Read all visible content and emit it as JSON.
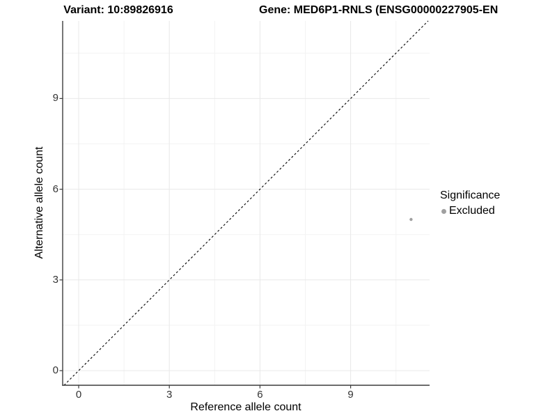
{
  "header": {
    "variant_title": "Variant: 10:89826916",
    "gene_title": "Gene: MED6P1-RNLS (ENSG00000227905-EN"
  },
  "chart_data": {
    "type": "scatter",
    "xlabel": "Reference allele count",
    "ylabel": "Alternative allele count",
    "x_ticks": [
      0,
      3,
      6,
      9
    ],
    "y_ticks": [
      0,
      3,
      6,
      9
    ],
    "x_minor_gridlines": [
      1.5,
      4.5,
      7.5,
      10.5
    ],
    "y_minor_gridlines": [
      1.5,
      4.5,
      7.5,
      10.5
    ],
    "xlim": [
      -0.55,
      11.6
    ],
    "ylim": [
      -0.55,
      11.6
    ],
    "grid": {
      "major": true,
      "minor": true
    },
    "reference_line": {
      "type": "identity",
      "slope": 1,
      "intercept": 0,
      "style": "dashed",
      "color": "#000000"
    },
    "series": [
      {
        "name": "Excluded",
        "color": "#a0a0a0",
        "points": [
          {
            "x": 11,
            "y": 5
          }
        ]
      }
    ],
    "legend": {
      "title": "Significance",
      "position": "right",
      "entries": [
        {
          "label": "Excluded",
          "color": "#a0a0a0"
        }
      ]
    }
  },
  "colors": {
    "background": "#ffffff",
    "grid_major": "#e8e8e8",
    "grid_minor": "#f3f3f3",
    "axis_line": "#3c3c3c",
    "tick_text": "#333333",
    "title_text": "#000000"
  }
}
